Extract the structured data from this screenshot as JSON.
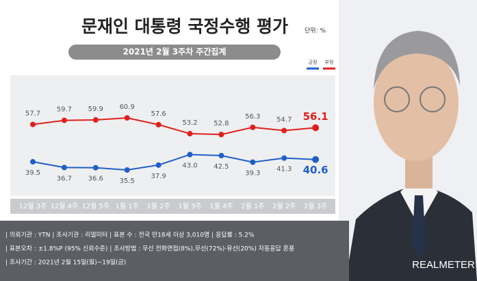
{
  "chart_data": {
    "type": "line",
    "title": "문재인 대통령 국정수행 평가",
    "unit": "단위: %",
    "subtitle": "2021년 2월 3주차 주간집계",
    "categories": [
      "12월 3주",
      "12월 4주",
      "12월 5주",
      "1월 1주",
      "1월 2주",
      "1월 3주",
      "1월 4주",
      "2월 1주",
      "2월 2주",
      "2월 3주"
    ],
    "series": [
      {
        "name": "긍정",
        "color": "#1f5fc8",
        "values": [
          39.5,
          36.7,
          36.6,
          35.5,
          37.9,
          43.0,
          42.5,
          39.3,
          41.3,
          40.6
        ],
        "value_labels": [
          "39.5",
          "36.7",
          "36.6",
          "35.5",
          "37.9",
          "43.0",
          "42.5",
          "39.3",
          "41.3",
          "40.6"
        ]
      },
      {
        "name": "부정",
        "color": "#e0201c",
        "values": [
          57.7,
          59.7,
          59.9,
          60.9,
          57.6,
          53.2,
          52.8,
          56.3,
          54.7,
          56.1
        ],
        "value_labels": [
          "57.7",
          "59.7",
          "59.9",
          "60.9",
          "57.6",
          "53.2",
          "52.8",
          "56.3",
          "54.7",
          "56.1"
        ]
      }
    ]
  },
  "footer": {
    "lines": [
      "| 의뢰기관 : YTN   |   조사기관 : 리얼미터   |   표본 수 : 전국 만18세 이상 3,010명   |   응답률 : 5.2%",
      "| 표본오차 : ±1.8%P (95% 신뢰수준)   |   조사방법 : 무선 전화면접(8%),무선(72%)·유선(20%) 자동응답 혼용",
      "| 조사기간 : 2021년 2월 15일(월)~19일(금)"
    ]
  },
  "brand": "REALMETER"
}
